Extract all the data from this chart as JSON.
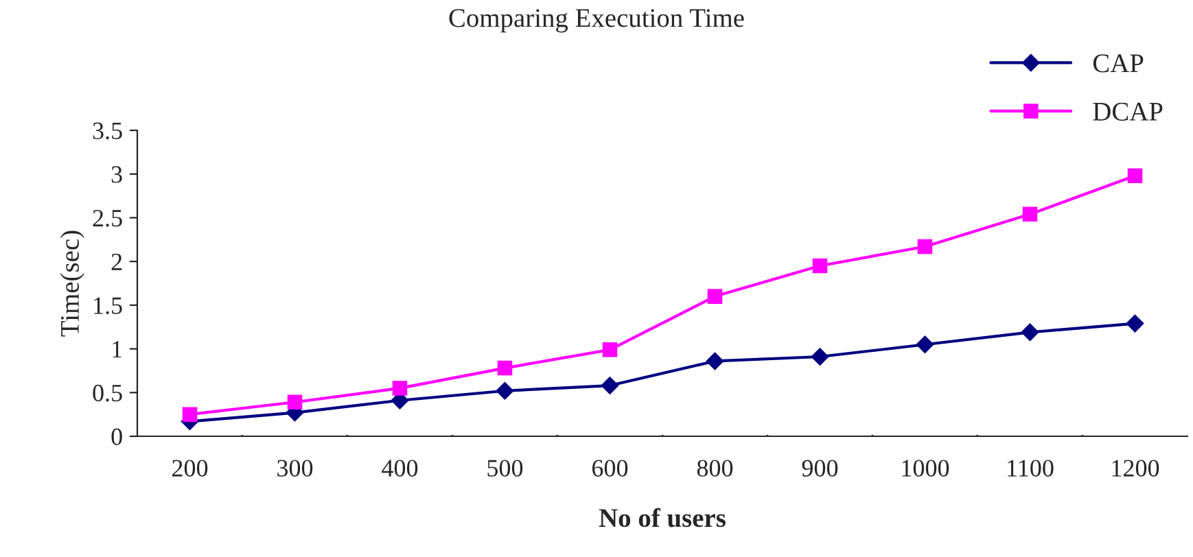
{
  "chart_data": {
    "type": "line",
    "title": "Comparing Execution Time",
    "xlabel": "No of users",
    "ylabel": "Time(sec)",
    "categories": [
      "200",
      "300",
      "400",
      "500",
      "600",
      "800",
      "900",
      "1000",
      "1100",
      "1200"
    ],
    "series": [
      {
        "name": "CAP",
        "color": "#000080",
        "marker": "diamond",
        "values": [
          0.17,
          0.27,
          0.41,
          0.52,
          0.58,
          0.86,
          0.91,
          1.05,
          1.19,
          1.29
        ]
      },
      {
        "name": "DCAP",
        "color": "#ff00ff",
        "marker": "square",
        "values": [
          0.25,
          0.39,
          0.55,
          0.78,
          0.99,
          1.6,
          1.95,
          2.17,
          2.54,
          2.98
        ]
      }
    ],
    "ylim": [
      0,
      3.5
    ],
    "yticks": [
      0,
      0.5,
      1,
      1.5,
      2,
      2.5,
      3,
      3.5
    ],
    "grid": false,
    "legend": "top right",
    "line_style": "solid"
  }
}
